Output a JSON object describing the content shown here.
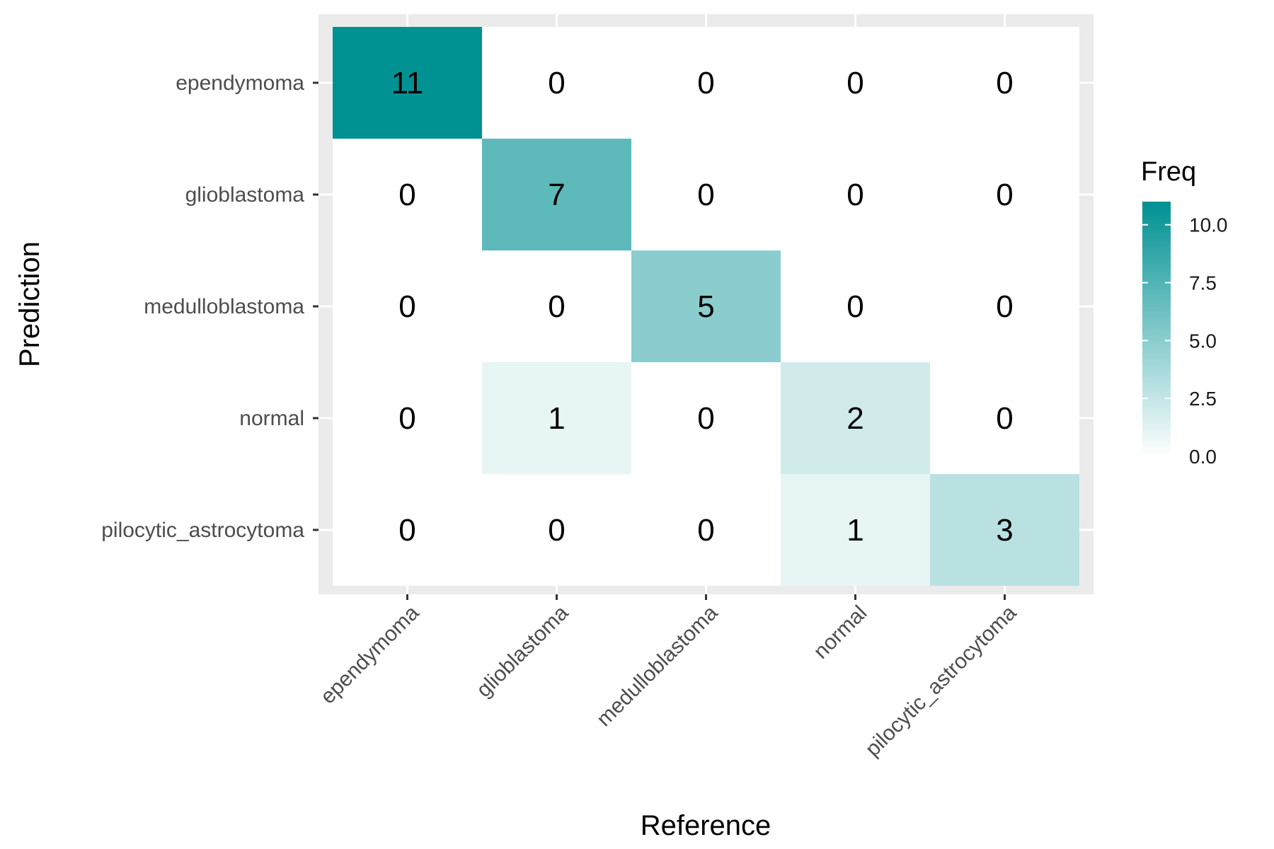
{
  "chart_data": {
    "type": "heatmap",
    "xlabel": "Reference",
    "ylabel": "Prediction",
    "x_categories": [
      "ependymoma",
      "glioblastoma",
      "medulloblastoma",
      "normal",
      "pilocytic_astrocytoma"
    ],
    "y_categories": [
      "ependymoma",
      "glioblastoma",
      "medulloblastoma",
      "normal",
      "pilocytic_astrocytoma"
    ],
    "values": [
      [
        11,
        0,
        0,
        0,
        0
      ],
      [
        0,
        7,
        0,
        0,
        0
      ],
      [
        0,
        0,
        5,
        0,
        0
      ],
      [
        0,
        1,
        0,
        2,
        0
      ],
      [
        0,
        0,
        0,
        1,
        3
      ]
    ],
    "legend": {
      "title": "Freq",
      "placement": "right",
      "ticks": [
        0.0,
        2.5,
        5.0,
        7.5,
        10.0
      ],
      "tick_labels": [
        "0.0",
        "2.5",
        "5.0",
        "7.5",
        "10.0"
      ],
      "range": [
        0,
        11
      ]
    },
    "colors": {
      "low": "#ffffff",
      "high": "#009193",
      "panel_background": "#ebebeb",
      "grid": "#ffffff"
    },
    "grid": true
  }
}
